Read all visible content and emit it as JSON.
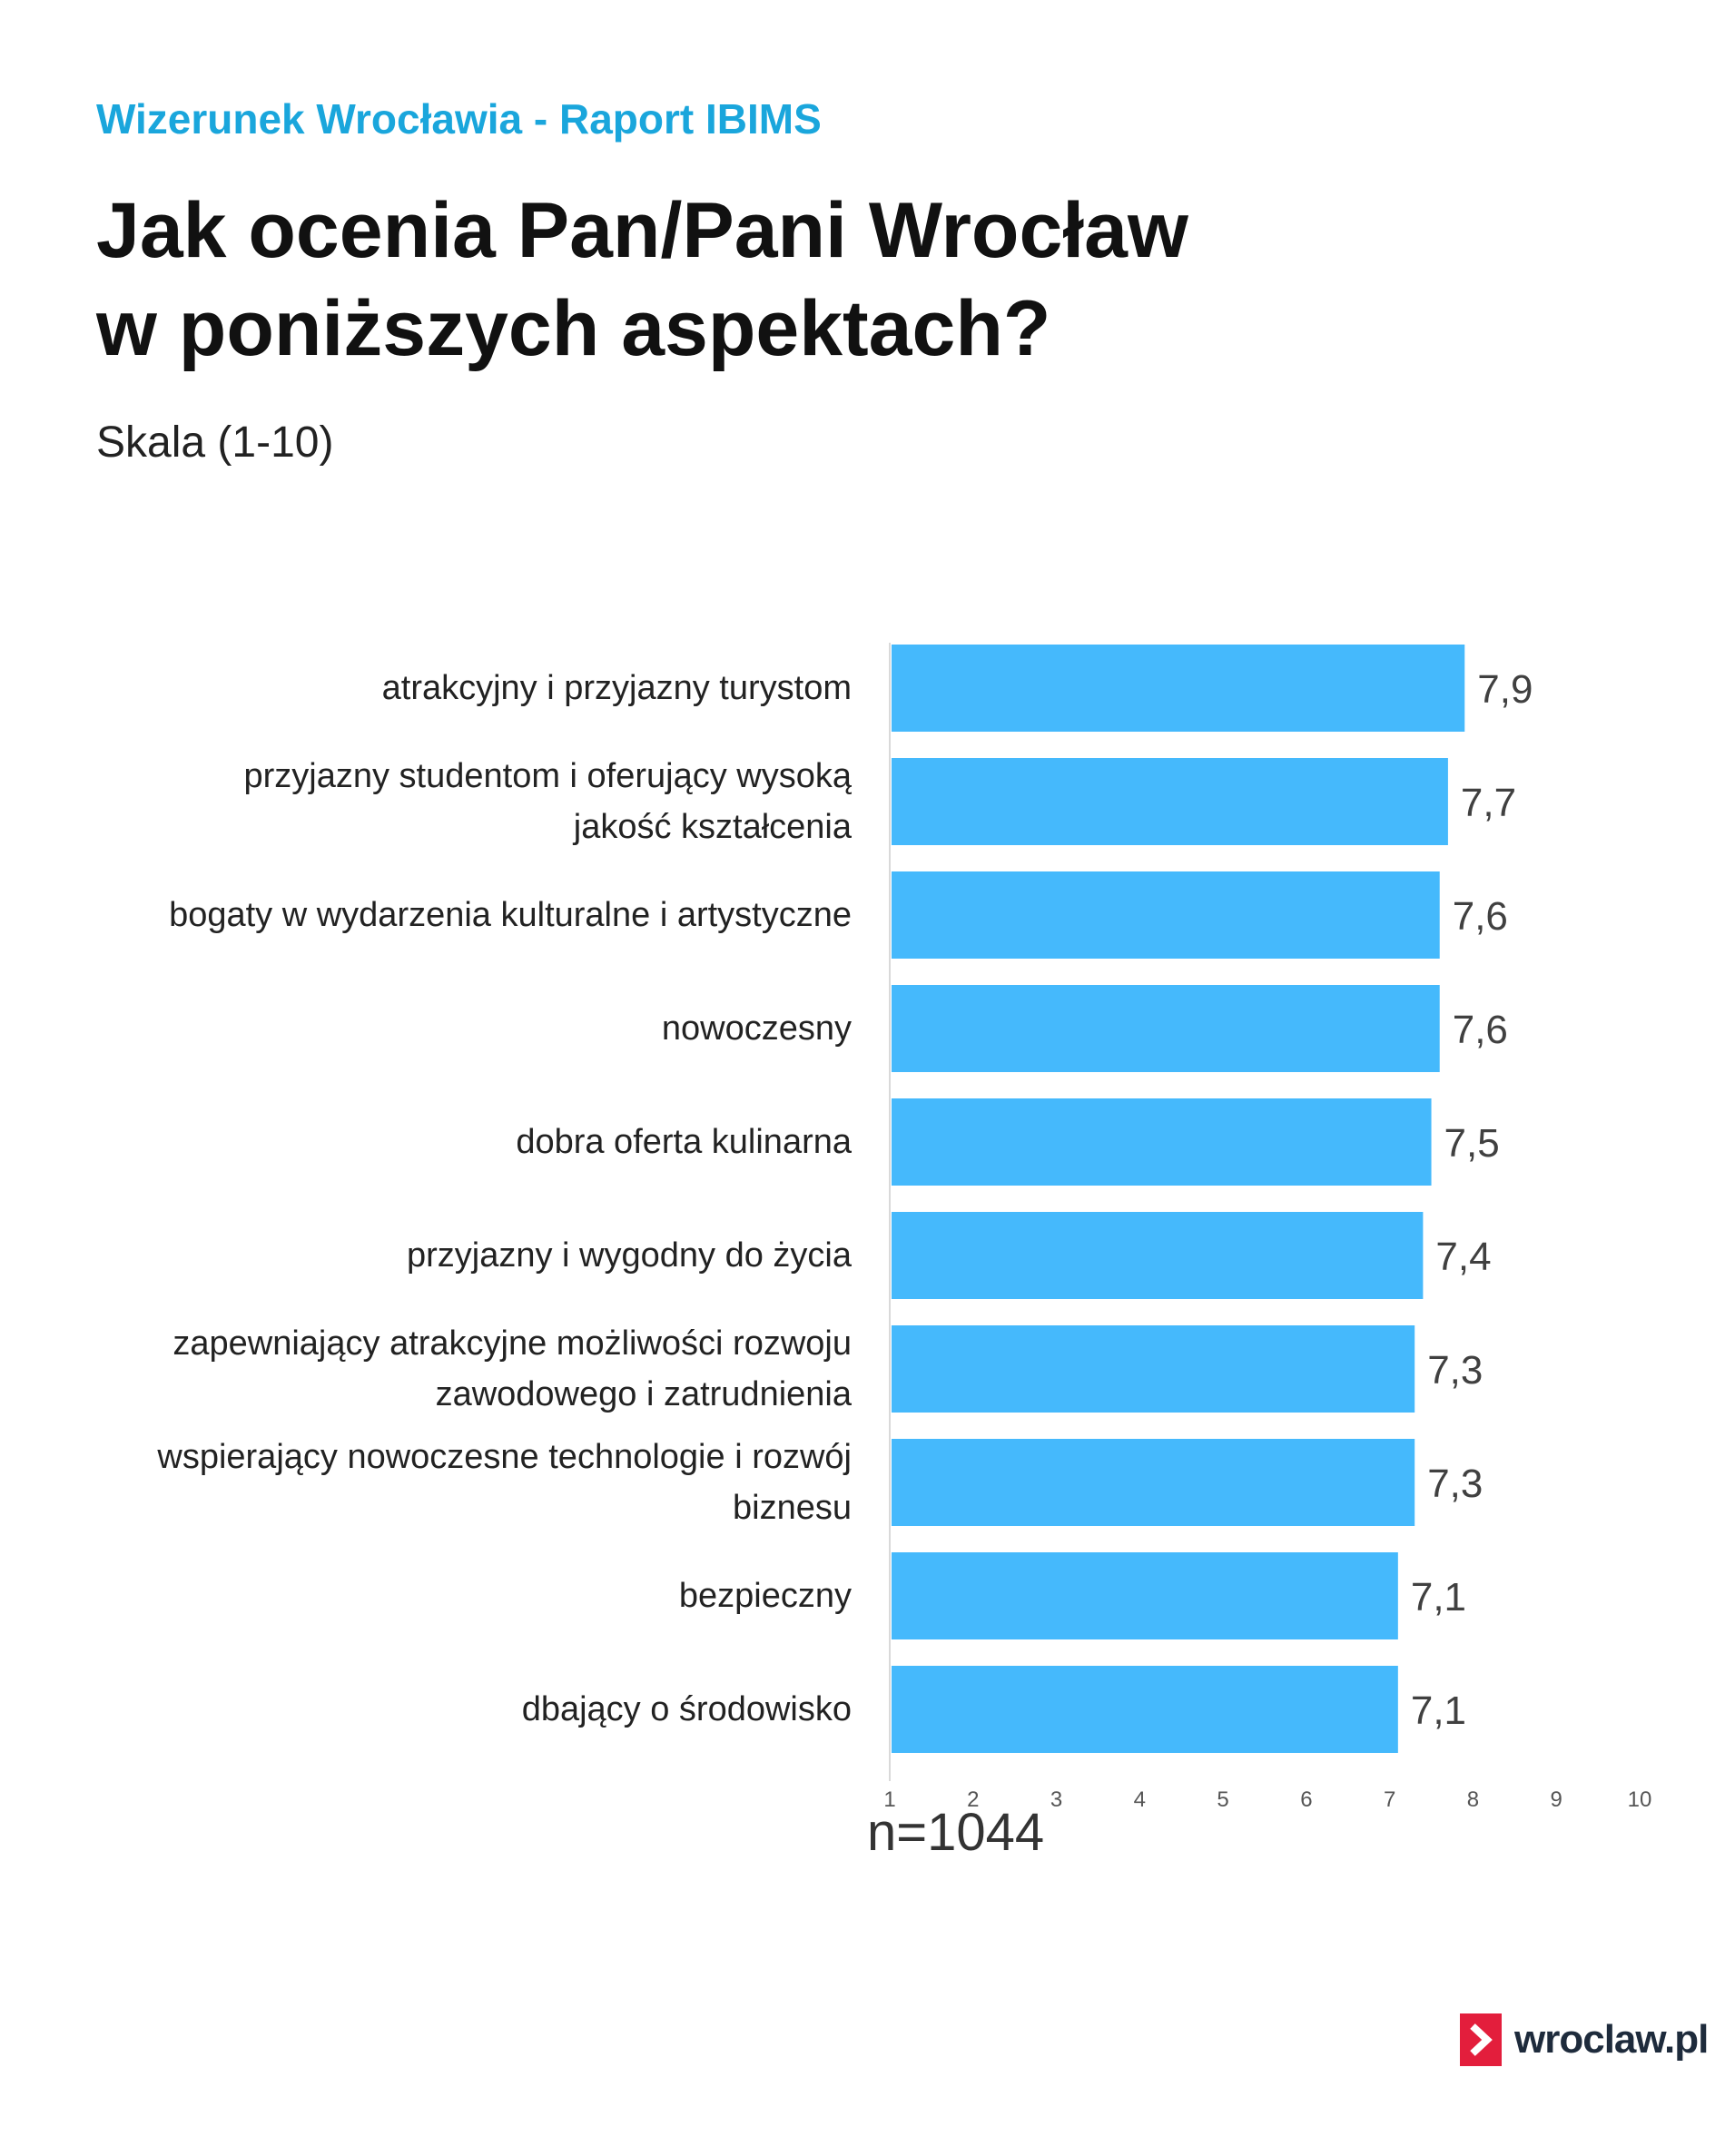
{
  "header": {
    "supertitle": "Wizerunek Wrocławia - Raport IBIMS",
    "title_line1": "Jak ocenia Pan/Pani Wrocław",
    "title_line2": "w poniższych aspektach?",
    "subtitle": "Skala (1-10)"
  },
  "chart_data": {
    "type": "bar",
    "orientation": "horizontal",
    "categories": [
      [
        "atrakcyjny i przyjazny turystom"
      ],
      [
        "przyjazny studentom i oferujący wysoką",
        "jakość kształcenia"
      ],
      [
        "bogaty w wydarzenia kulturalne i artystyczne"
      ],
      [
        "nowoczesny"
      ],
      [
        "dobra oferta kulinarna"
      ],
      [
        "przyjazny i wygodny do życia"
      ],
      [
        "zapewniający atrakcyjne możliwości rozwoju",
        "zawodowego i zatrudnienia"
      ],
      [
        "wspierający nowoczesne technologie i rozwój",
        "biznesu"
      ],
      [
        "bezpieczny"
      ],
      [
        "dbający o środowisko"
      ]
    ],
    "values": [
      7.9,
      7.7,
      7.6,
      7.6,
      7.5,
      7.4,
      7.3,
      7.3,
      7.1,
      7.1
    ],
    "data_labels": [
      "7,9",
      "7,7",
      "7,6",
      "7,6",
      "7,5",
      "7,4",
      "7,3",
      "7,3",
      "7,1",
      "7,1"
    ],
    "xlim": [
      1,
      10
    ],
    "xticks": [
      "1",
      "2",
      "3",
      "4",
      "5",
      "6",
      "7",
      "8",
      "9",
      "10"
    ],
    "grid": false,
    "bar_color": "#45b9fc"
  },
  "footer": {
    "sample_size": "n=1044",
    "logo_text": "wroclaw.pl",
    "logo_color": "#e31e3c"
  }
}
